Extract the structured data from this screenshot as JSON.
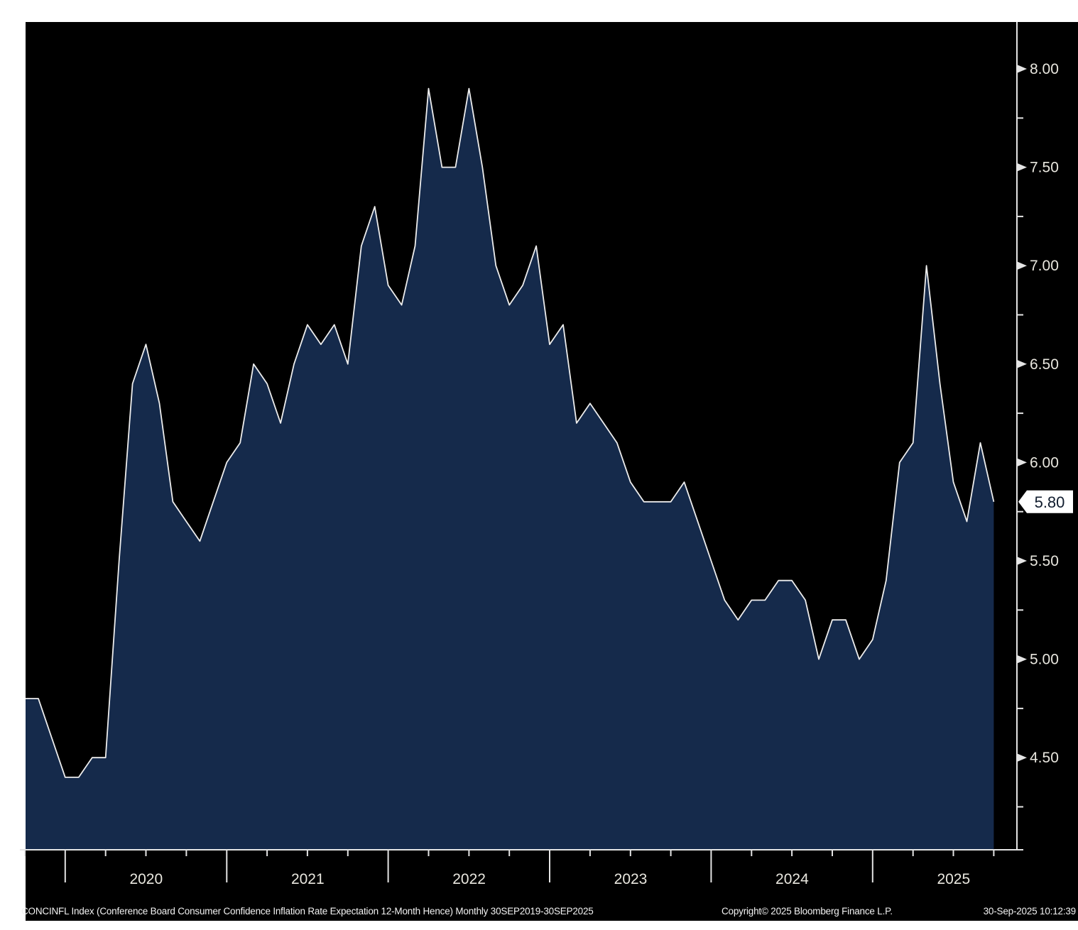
{
  "page": {
    "background": "#ffffff",
    "panel_background": "#000000"
  },
  "footer": {
    "description": "CONCINFL Index (Conference Board Consumer Confidence Inflation Rate Expectation 12-Month Hence) Monthly 30SEP2019-30SEP2025",
    "copyright": "Copyright© 2025 Bloomberg Finance L.P.",
    "timestamp": "30-Sep-2025 10:12:39"
  },
  "chart_data": {
    "type": "area",
    "title": "CONCINFL Index (Conference Board Consumer Confidence Inflation Rate Expectation 12-Month Hence)",
    "frequency": "Monthly",
    "period": "30SEP2019-30SEP2025",
    "legend": false,
    "grid": false,
    "x": [
      "2019-09",
      "2019-10",
      "2019-11",
      "2019-12",
      "2020-01",
      "2020-02",
      "2020-03",
      "2020-04",
      "2020-05",
      "2020-06",
      "2020-07",
      "2020-08",
      "2020-09",
      "2020-10",
      "2020-11",
      "2020-12",
      "2021-01",
      "2021-02",
      "2021-03",
      "2021-04",
      "2021-05",
      "2021-06",
      "2021-07",
      "2021-08",
      "2021-09",
      "2021-10",
      "2021-11",
      "2021-12",
      "2022-01",
      "2022-02",
      "2022-03",
      "2022-04",
      "2022-05",
      "2022-06",
      "2022-07",
      "2022-08",
      "2022-09",
      "2022-10",
      "2022-11",
      "2022-12",
      "2023-01",
      "2023-02",
      "2023-03",
      "2023-04",
      "2023-05",
      "2023-06",
      "2023-07",
      "2023-08",
      "2023-09",
      "2023-10",
      "2023-11",
      "2023-12",
      "2024-01",
      "2024-02",
      "2024-03",
      "2024-04",
      "2024-05",
      "2024-06",
      "2024-07",
      "2024-08",
      "2024-09",
      "2024-10",
      "2024-11",
      "2024-12",
      "2025-01",
      "2025-02",
      "2025-03",
      "2025-04",
      "2025-05",
      "2025-06",
      "2025-07",
      "2025-08",
      "2025-09"
    ],
    "values": [
      4.8,
      4.8,
      4.6,
      4.4,
      4.4,
      4.5,
      4.5,
      5.5,
      6.4,
      6.6,
      6.3,
      5.8,
      5.7,
      5.6,
      5.8,
      6.0,
      6.1,
      6.5,
      6.4,
      6.2,
      6.5,
      6.7,
      6.6,
      6.7,
      6.5,
      7.1,
      7.3,
      6.9,
      6.8,
      7.1,
      7.9,
      7.5,
      7.5,
      7.9,
      7.5,
      7.0,
      6.8,
      6.9,
      7.1,
      6.6,
      6.7,
      6.2,
      6.3,
      6.2,
      6.1,
      5.9,
      5.8,
      5.8,
      5.8,
      5.9,
      5.7,
      5.5,
      5.3,
      5.2,
      5.3,
      5.3,
      5.4,
      5.4,
      5.3,
      5.0,
      5.2,
      5.2,
      5.0,
      5.1,
      5.4,
      6.0,
      6.1,
      7.0,
      6.4,
      5.9,
      5.7,
      6.1,
      5.8
    ],
    "last_value_label": "5.80",
    "y_axis": {
      "side": "right",
      "tick_labels": [
        "8.00",
        "7.50",
        "7.00",
        "6.50",
        "6.00",
        "5.50",
        "5.00",
        "4.50"
      ],
      "tick_values": [
        8.0,
        7.5,
        7.0,
        6.5,
        6.0,
        5.5,
        5.0,
        4.5
      ],
      "minor_tick_values": [
        7.75,
        7.25,
        6.75,
        6.25,
        5.75,
        5.25,
        4.75,
        4.25
      ]
    },
    "x_axis": {
      "year_labels": [
        "2020",
        "2021",
        "2022",
        "2023",
        "2024",
        "2025"
      ],
      "minor_tick": "quarterly"
    },
    "colors": {
      "area_fill": "#152a4b",
      "line": "#ededed",
      "axis": "#e4e4e4",
      "tick_label": "#e9e7df",
      "badge_bg": "#ffffff",
      "badge_text": "#101c2e"
    }
  }
}
